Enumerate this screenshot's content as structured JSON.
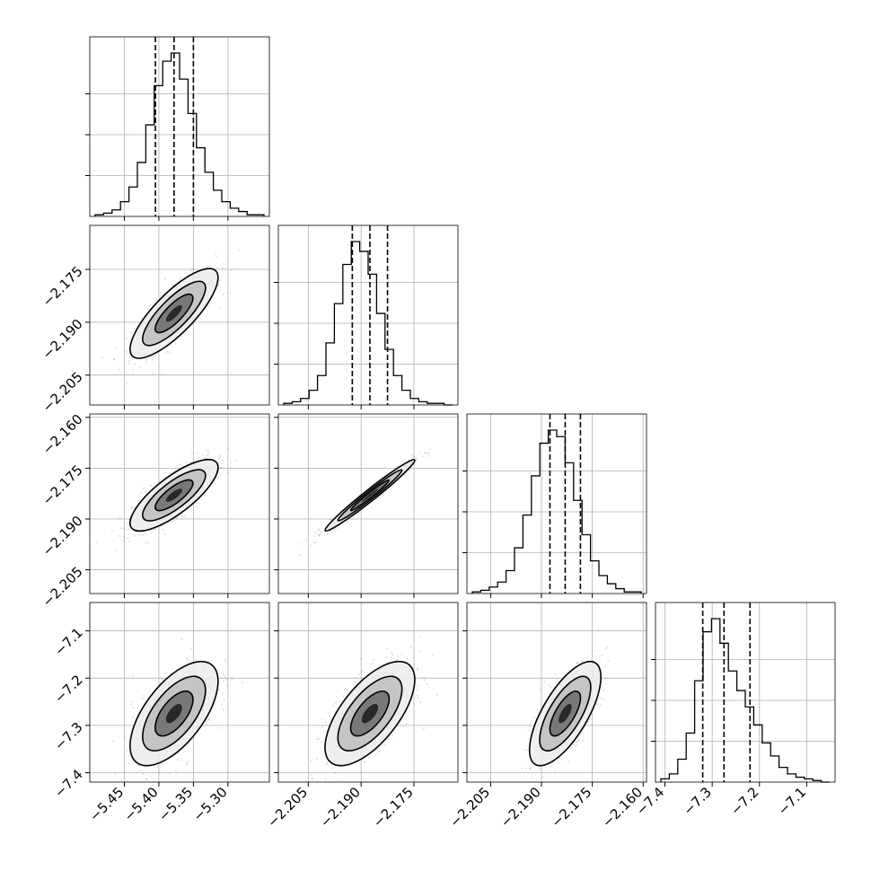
{
  "chart_data": {
    "type": "corner",
    "grid": true,
    "colors": {
      "line": "#000000",
      "grid": "#b0b0b0",
      "background": "#ffffff"
    },
    "parameters": [
      {
        "center": -5.378,
        "sigma": 0.026,
        "quantiles": [
          -5.405,
          -5.378,
          -5.35
        ],
        "range": [
          -5.5,
          -5.24
        ],
        "ticks": [
          -5.45,
          -5.4,
          -5.35,
          -5.3
        ],
        "tick_labels": [
          "−5.45",
          "−5.40",
          "−5.35",
          "−5.30"
        ]
      },
      {
        "center": -2.1875,
        "sigma": 0.0052,
        "quantiles": [
          -2.1925,
          -2.1875,
          -2.1825
        ],
        "range": [
          -2.2135,
          -2.1625
        ],
        "ticks": [
          -2.205,
          -2.19,
          -2.175
        ],
        "tick_labels": [
          "−2.205",
          "−2.190",
          "−2.175"
        ]
      },
      {
        "center": -2.183,
        "sigma": 0.0043,
        "quantiles": [
          -2.1875,
          -2.183,
          -2.1785
        ],
        "range": [
          -2.212,
          -2.159
        ],
        "ticks": [
          -2.205,
          -2.19,
          -2.175,
          -2.16
        ],
        "tick_labels": [
          "−2.205",
          "−2.190",
          "−2.175",
          "−2.160"
        ]
      },
      {
        "center": -7.275,
        "sigma": 0.045,
        "quantiles": [
          -7.32,
          -7.275,
          -7.22
        ],
        "range": [
          -7.42,
          -7.04
        ],
        "ticks": [
          -7.4,
          -7.3,
          -7.2,
          -7.1
        ],
        "tick_labels": [
          "−7.4",
          "−7.3",
          "−7.2",
          "−7.1"
        ]
      }
    ],
    "correlations": {
      "1_0": 0.8,
      "2_0": 0.78,
      "2_1": 0.98,
      "3_0": 0.62,
      "3_1": 0.65,
      "3_2": 0.7
    },
    "histograms": [
      [
        0.01,
        0.02,
        0.04,
        0.09,
        0.18,
        0.33,
        0.56,
        0.8,
        0.95,
        1.0,
        0.84,
        0.63,
        0.42,
        0.27,
        0.16,
        0.09,
        0.05,
        0.03,
        0.01,
        0.01
      ],
      [
        0.01,
        0.02,
        0.04,
        0.09,
        0.18,
        0.38,
        0.62,
        0.86,
        1.0,
        0.94,
        0.8,
        0.56,
        0.34,
        0.18,
        0.09,
        0.04,
        0.02,
        0.01,
        0.01,
        0.0
      ],
      [
        0.01,
        0.02,
        0.04,
        0.07,
        0.14,
        0.28,
        0.48,
        0.72,
        0.92,
        1.0,
        0.96,
        0.8,
        0.57,
        0.36,
        0.2,
        0.11,
        0.06,
        0.03,
        0.01,
        0.01
      ],
      [
        0.02,
        0.05,
        0.14,
        0.3,
        0.62,
        0.92,
        1.0,
        0.85,
        0.68,
        0.56,
        0.46,
        0.35,
        0.24,
        0.16,
        0.09,
        0.05,
        0.03,
        0.02,
        0.01,
        0.0
      ]
    ]
  }
}
